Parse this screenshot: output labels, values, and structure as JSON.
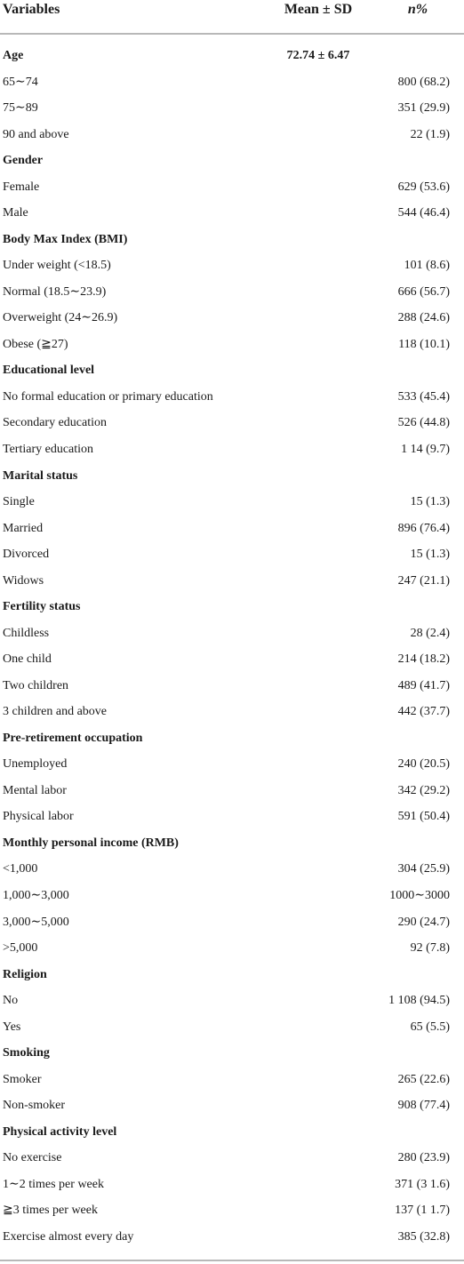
{
  "table": {
    "header": {
      "variable": "Variables",
      "mean_sd": "Mean ± SD",
      "n": "n%"
    },
    "groups": [
      {
        "name": "Age",
        "mean_sd": "72.74 ± 6.47",
        "items": [
          {
            "variable": "65∼74",
            "n": "800 (68.2)"
          },
          {
            "variable": "75∼89",
            "n": "351 (29.9)"
          },
          {
            "variable": "90 and above",
            "n": "22 (1.9)"
          }
        ]
      },
      {
        "name": "Gender",
        "items": [
          {
            "variable": "Female",
            "n": "629 (53.6)"
          },
          {
            "variable": "Male",
            "n": "544 (46.4)"
          }
        ]
      },
      {
        "name": "Body Max Index (BMI)",
        "items": [
          {
            "variable": "Under weight (<18.5)",
            "n": "101 (8.6)"
          },
          {
            "variable": "Normal (18.5∼23.9)",
            "n": "666 (56.7)"
          },
          {
            "variable": "Overweight (24∼26.9)",
            "n": "288 (24.6)"
          },
          {
            "variable": "Obese (≧27)",
            "n": "118 (10.1)"
          }
        ]
      },
      {
        "name": "Educational level",
        "items": [
          {
            "variable": "No formal education or primary education",
            "n": "533 (45.4)"
          },
          {
            "variable": "Secondary education",
            "n": "526 (44.8)"
          },
          {
            "variable": "Tertiary education",
            "n": "1 14 (9.7)"
          }
        ]
      },
      {
        "name": "Marital status",
        "items": [
          {
            "variable": "Single",
            "n": "15 (1.3)"
          },
          {
            "variable": "Married",
            "n": "896 (76.4)"
          },
          {
            "variable": "Divorced",
            "n": "15 (1.3)"
          },
          {
            "variable": "Widows",
            "n": "247 (21.1)"
          }
        ]
      },
      {
        "name": "Fertility status",
        "items": [
          {
            "variable": "Childless",
            "n": "28 (2.4)"
          },
          {
            "variable": "One child",
            "n": "214 (18.2)"
          },
          {
            "variable": "Two children",
            "n": "489 (41.7)"
          },
          {
            "variable": "3 children and above",
            "n": "442 (37.7)"
          }
        ]
      },
      {
        "name": "Pre-retirement occupation",
        "items": [
          {
            "variable": "Unemployed",
            "n": "240 (20.5)"
          },
          {
            "variable": "Mental labor",
            "n": "342 (29.2)"
          },
          {
            "variable": "Physical labor",
            "n": "591 (50.4)"
          }
        ]
      },
      {
        "name": "Monthly personal income (RMB)",
        "items": [
          {
            "variable": "<1,000",
            "n": "304 (25.9)"
          },
          {
            "variable": "1,000∼3,000",
            "n": "1000∼3000"
          },
          {
            "variable": "3,000∼5,000",
            "n": "290 (24.7)"
          },
          {
            "variable": ">5,000",
            "n": "92 (7.8)"
          }
        ]
      },
      {
        "name": "Religion",
        "items": [
          {
            "variable": "No",
            "n": "1 108 (94.5)"
          },
          {
            "variable": "Yes",
            "n": "65 (5.5)"
          }
        ]
      },
      {
        "name": "Smoking",
        "items": [
          {
            "variable": "Smoker",
            "n": "265 (22.6)"
          },
          {
            "variable": "Non-smoker",
            "n": "908 (77.4)"
          }
        ]
      },
      {
        "name": "Physical activity level",
        "items": [
          {
            "variable": "No exercise",
            "n": "280 (23.9)"
          },
          {
            "variable": "1∼2 times per week",
            "n": "371 (3 1.6)"
          },
          {
            "variable": "≧3 times per week",
            "n": "137 (1 1.7)"
          },
          {
            "variable": "Exercise almost every day",
            "n": "385 (32.8)"
          }
        ]
      }
    ]
  }
}
